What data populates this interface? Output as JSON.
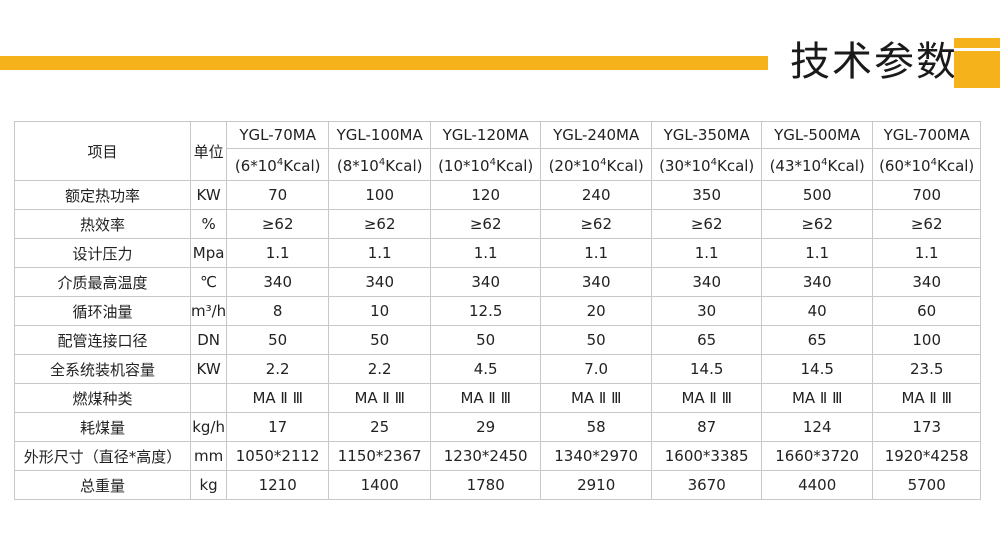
{
  "header": {
    "title": "技术参数"
  },
  "table": {
    "header": {
      "item_label": "项目",
      "unit_label": "单位"
    },
    "models": [
      {
        "name": "YGL-70MA",
        "cap_pre": "(6*10",
        "cap_exp": "4",
        "cap_post": "Kcal)"
      },
      {
        "name": "YGL-100MA",
        "cap_pre": "(8*10",
        "cap_exp": "4",
        "cap_post": "Kcal)"
      },
      {
        "name": "YGL-120MA",
        "cap_pre": "(10*10",
        "cap_exp": "4",
        "cap_post": "Kcal)"
      },
      {
        "name": "YGL-240MA",
        "cap_pre": "(20*10",
        "cap_exp": "4",
        "cap_post": "Kcal)"
      },
      {
        "name": "YGL-350MA",
        "cap_pre": "(30*10",
        "cap_exp": "4",
        "cap_post": "Kcal)"
      },
      {
        "name": "YGL-500MA",
        "cap_pre": "(43*10",
        "cap_exp": "4",
        "cap_post": "Kcal)"
      },
      {
        "name": "YGL-700MA",
        "cap_pre": "(60*10",
        "cap_exp": "4",
        "cap_post": "Kcal)"
      }
    ],
    "rows": [
      {
        "label": "额定热功率",
        "unit": "KW",
        "values": [
          "70",
          "100",
          "120",
          "240",
          "350",
          "500",
          "700"
        ]
      },
      {
        "label": "热效率",
        "unit": "%",
        "values": [
          "≥62",
          "≥62",
          "≥62",
          "≥62",
          "≥62",
          "≥62",
          "≥62"
        ]
      },
      {
        "label": "设计压力",
        "unit": "Mpa",
        "values": [
          "1.1",
          "1.1",
          "1.1",
          "1.1",
          "1.1",
          "1.1",
          "1.1"
        ]
      },
      {
        "label": "介质最高温度",
        "unit": "℃",
        "values": [
          "340",
          "340",
          "340",
          "340",
          "340",
          "340",
          "340"
        ]
      },
      {
        "label": "循环油量",
        "unit": "m³/h",
        "values": [
          "8",
          "10",
          "12.5",
          "20",
          "30",
          "40",
          "60"
        ]
      },
      {
        "label": "配管连接口径",
        "unit": "DN",
        "values": [
          "50",
          "50",
          "50",
          "50",
          "65",
          "65",
          "100"
        ]
      },
      {
        "label": "全系统装机容量",
        "unit": "KW",
        "values": [
          "2.2",
          "2.2",
          "4.5",
          "7.0",
          "14.5",
          "14.5",
          "23.5"
        ]
      },
      {
        "label": "燃煤种类",
        "unit": "",
        "values": [
          "MA Ⅱ Ⅲ",
          "MA Ⅱ Ⅲ",
          "MA Ⅱ Ⅲ",
          "MA Ⅱ Ⅲ",
          "MA Ⅱ Ⅲ",
          "MA Ⅱ Ⅲ",
          "MA Ⅱ Ⅲ"
        ]
      },
      {
        "label": "耗煤量",
        "unit": "kg/h",
        "values": [
          "17",
          "25",
          "29",
          "58",
          "87",
          "124",
          "173"
        ]
      },
      {
        "label": "外形尺寸（直径*高度）",
        "unit": "mm",
        "values": [
          "1050*2112",
          "1150*2367",
          "1230*2450",
          "1340*2970",
          "1600*3385",
          "1660*3720",
          "1920*4258"
        ]
      },
      {
        "label": "总重量",
        "unit": "kg",
        "values": [
          "1210",
          "1400",
          "1780",
          "2910",
          "3670",
          "4400",
          "5700"
        ]
      }
    ]
  }
}
